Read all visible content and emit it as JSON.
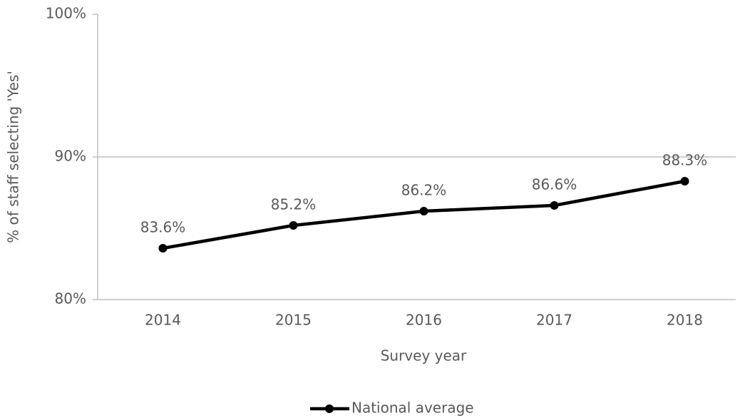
{
  "chart_data": {
    "type": "line",
    "x_label": "Survey year",
    "y_label": "% of staff selecting 'Yes'",
    "categories": [
      "2014",
      "2015",
      "2016",
      "2017",
      "2018"
    ],
    "series": [
      {
        "name": "National average",
        "color": "#000000",
        "values": [
          83.6,
          85.2,
          86.2,
          86.6,
          88.3
        ],
        "value_labels": [
          "83.6%",
          "85.2%",
          "86.2%",
          "86.6%",
          "88.3%"
        ]
      }
    ],
    "ylim": [
      80,
      100
    ],
    "yticks": [
      {
        "value": 80,
        "label": "80%"
      },
      {
        "value": 90,
        "label": "90%"
      },
      {
        "value": 100,
        "label": "100%"
      }
    ],
    "grid": true,
    "legend": "bottom"
  }
}
